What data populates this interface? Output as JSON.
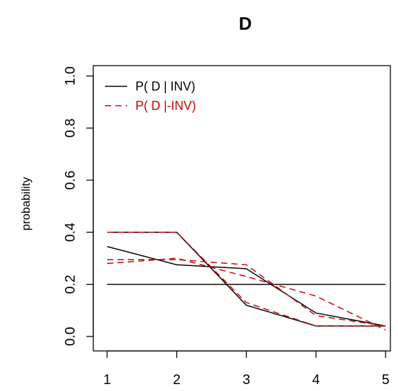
{
  "chart_data": {
    "type": "line",
    "title": "D",
    "xlabel": "",
    "ylabel": "probability",
    "x": [
      1,
      2,
      3,
      4,
      5
    ],
    "xlim": [
      1,
      5
    ],
    "ylim": [
      0,
      1
    ],
    "xticks": [
      "1",
      "2",
      "3",
      "4",
      "5"
    ],
    "yticks": [
      "0.0",
      "0.2",
      "0.4",
      "0.6",
      "0.8",
      "1.0"
    ],
    "grid": false,
    "legend_position": "top-left",
    "series": [
      {
        "name": "P( D | INV)",
        "color": "#000000",
        "dash": "solid",
        "values": [
          0.345,
          0.275,
          0.26,
          0.09,
          0.04
        ]
      },
      {
        "color": "#000000",
        "dash": "solid",
        "values": [
          0.4,
          0.4,
          0.12,
          0.04,
          0.04
        ]
      },
      {
        "color": "#000000",
        "dash": "solid",
        "values": [
          0.2,
          0.2,
          0.2,
          0.2,
          0.2
        ]
      },
      {
        "name": "P( D |-INV)",
        "color": "#cc0000",
        "dash": "dashed",
        "values": [
          0.295,
          0.295,
          0.275,
          0.08,
          0.04
        ]
      },
      {
        "color": "#cc0000",
        "dash": "dashed",
        "values": [
          0.28,
          0.3,
          0.23,
          0.155,
          0.025
        ]
      },
      {
        "color": "#cc0000",
        "dash": "dashed",
        "values": [
          0.4,
          0.4,
          0.13,
          0.04,
          0.04
        ]
      }
    ]
  }
}
